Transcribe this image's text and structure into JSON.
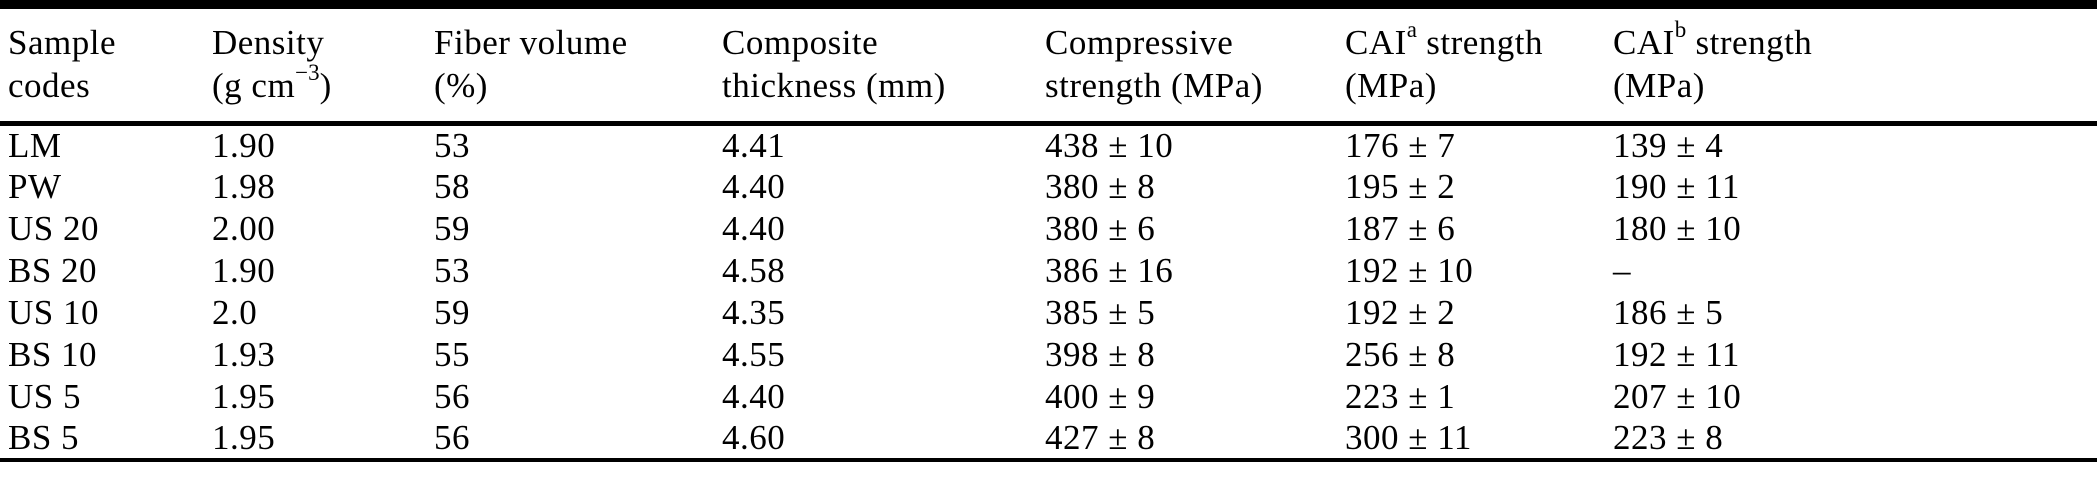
{
  "colors": {
    "background": "#ffffff",
    "text": "#000000",
    "rule": "#000000"
  },
  "header": {
    "col1": {
      "line1": "Sample",
      "line2": "codes"
    },
    "col2": {
      "line1": "Density",
      "line2_pre": "(g cm",
      "line2_sup": "−3",
      "line2_post": ")"
    },
    "col3": {
      "line1": "Fiber volume",
      "line2": "(%)"
    },
    "col4": {
      "line1": "Composite",
      "line2": "thickness (mm)"
    },
    "col5": {
      "line1": "Compressive",
      "line2": "strength (MPa)"
    },
    "col6": {
      "line1_pre": "CAI",
      "line1_sup": "a",
      "line1_post": " strength",
      "line2": "(MPa)"
    },
    "col7": {
      "line1_pre": "CAI",
      "line1_sup": "b",
      "line1_post": " strength",
      "line2": "(MPa)"
    }
  },
  "rows": [
    {
      "sample_code": "LM",
      "density": "1.90",
      "fiber_volume": "53",
      "thickness": "4.41",
      "compressive_strength": "438 ± 10",
      "cai_a": "176 ± 7",
      "cai_b": "139 ± 4"
    },
    {
      "sample_code": "PW",
      "density": "1.98",
      "fiber_volume": "58",
      "thickness": "4.40",
      "compressive_strength": "380 ± 8",
      "cai_a": "195 ± 2",
      "cai_b": "190 ± 11"
    },
    {
      "sample_code": "US 20",
      "density": "2.00",
      "fiber_volume": "59",
      "thickness": "4.40",
      "compressive_strength": "380 ± 6",
      "cai_a": "187 ± 6",
      "cai_b": "180 ± 10"
    },
    {
      "sample_code": "BS 20",
      "density": "1.90",
      "fiber_volume": "53",
      "thickness": "4.58",
      "compressive_strength": "386 ± 16",
      "cai_a": "192 ± 10",
      "cai_b": "–"
    },
    {
      "sample_code": "US 10",
      "density": "2.0",
      "fiber_volume": "59",
      "thickness": "4.35",
      "compressive_strength": "385 ± 5",
      "cai_a": "192 ± 2",
      "cai_b": "186 ± 5"
    },
    {
      "sample_code": "BS 10",
      "density": "1.93",
      "fiber_volume": "55",
      "thickness": "4.55",
      "compressive_strength": "398 ± 8",
      "cai_a": "256 ± 8",
      "cai_b": "192 ± 11"
    },
    {
      "sample_code": "US 5",
      "density": "1.95",
      "fiber_volume": "56",
      "thickness": "4.40",
      "compressive_strength": "400 ± 9",
      "cai_a": "223 ± 1",
      "cai_b": "207 ± 10"
    },
    {
      "sample_code": "BS 5",
      "density": "1.95",
      "fiber_volume": "56",
      "thickness": "4.60",
      "compressive_strength": "427 ± 8",
      "cai_a": "300 ± 11",
      "cai_b": "223 ± 8"
    }
  ]
}
